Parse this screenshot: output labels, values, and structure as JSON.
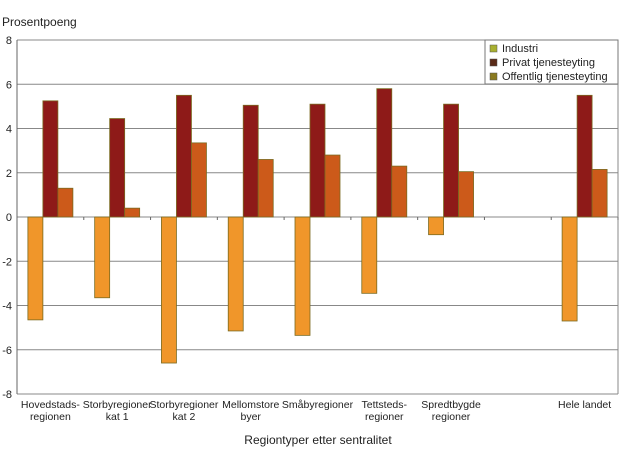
{
  "chart_data": {
    "type": "bar",
    "ylabel": "Prosentpoeng",
    "xlabel": "Regiontyper etter sentralitet",
    "ylim": [
      -8,
      8
    ],
    "yticks": [
      8,
      6,
      4,
      2,
      0,
      -2,
      -4,
      -6,
      -8
    ],
    "grid": true,
    "legend_position": "top-right",
    "categories": [
      [
        "Hovedstads-",
        "regionen"
      ],
      [
        "Storbyregioner",
        "kat 1"
      ],
      [
        "Storbyregioner",
        "kat 2"
      ],
      [
        "Mellomstore",
        "byer"
      ],
      [
        "Småbyregioner"
      ],
      [
        "Tettsteds-",
        "regioner"
      ],
      [
        "Spredtbygde",
        "regioner"
      ],
      [],
      [
        "Hele landet"
      ]
    ],
    "series": [
      {
        "name": "Industri",
        "color": "#f0962a",
        "legend_color": "#a8b030",
        "values": [
          -4.65,
          -3.65,
          -6.6,
          -5.15,
          -5.35,
          -3.45,
          -0.8,
          null,
          -4.7
        ]
      },
      {
        "name": "Privat tjenesteyting",
        "color": "#8e1a18",
        "legend_color": "#5a2a18",
        "values": [
          5.25,
          4.45,
          5.5,
          5.05,
          5.1,
          5.8,
          5.1,
          null,
          5.5
        ]
      },
      {
        "name": "Offentlig tjenesteyting",
        "color": "#cc5a1a",
        "legend_color": "#8a7a20",
        "values": [
          1.3,
          0.4,
          3.35,
          2.6,
          2.8,
          2.3,
          2.05,
          null,
          2.15
        ]
      }
    ]
  }
}
